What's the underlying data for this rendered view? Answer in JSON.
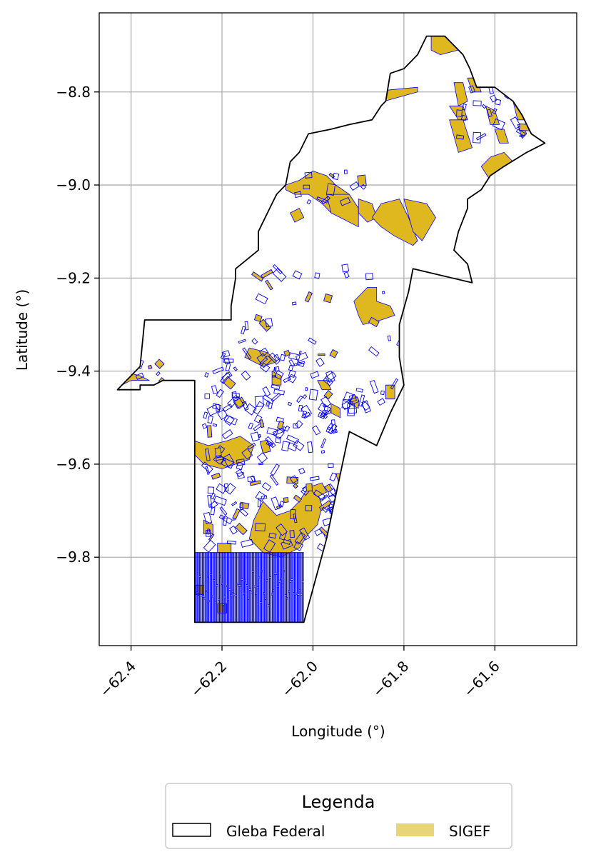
{
  "chart_data": {
    "type": "map",
    "xlabel": "Longitude (°)",
    "ylabel": "Latitude (°)",
    "xlim": [
      -62.47,
      -61.42
    ],
    "ylim": [
      -9.99,
      -8.63
    ],
    "x_ticks": [
      {
        "value": -62.4,
        "label": "−62.4"
      },
      {
        "value": -62.2,
        "label": "−62.2"
      },
      {
        "value": -62.0,
        "label": "−62.0"
      },
      {
        "value": -61.8,
        "label": "−61.8"
      },
      {
        "value": -61.6,
        "label": "−61.6"
      }
    ],
    "y_ticks": [
      {
        "value": -8.8,
        "label": "−8.8"
      },
      {
        "value": -9.0,
        "label": "−9.0"
      },
      {
        "value": -9.2,
        "label": "−9.2"
      },
      {
        "value": -9.4,
        "label": "−9.4"
      },
      {
        "value": -9.6,
        "label": "−9.6"
      },
      {
        "value": -9.8,
        "label": "−9.8"
      }
    ],
    "grid": true,
    "legend": {
      "title": "Legenda",
      "placement": "bottom-center",
      "entries": [
        {
          "label": "Gleba Federal",
          "style": "outline",
          "edge": "#000000",
          "fill": "#ffffff"
        },
        {
          "label": "SIGEF",
          "style": "filled",
          "fill": "#e8d57a"
        }
      ]
    },
    "colors": {
      "gleba_edge": "#000000",
      "sigef_fill": "#dfb81f",
      "sigef_edge": "#0000ff",
      "grid": "#b0b0b0"
    },
    "gleba_outline": [
      [
        -61.75,
        -8.68
      ],
      [
        -61.71,
        -8.68
      ],
      [
        -61.69,
        -8.7
      ],
      [
        -61.67,
        -8.72
      ],
      [
        -61.655,
        -8.75
      ],
      [
        -61.64,
        -8.79
      ],
      [
        -61.6,
        -8.79
      ],
      [
        -61.56,
        -8.82
      ],
      [
        -61.54,
        -8.85
      ],
      [
        -61.52,
        -8.89
      ],
      [
        -61.49,
        -8.91
      ],
      [
        -61.53,
        -8.93
      ],
      [
        -61.58,
        -8.96
      ],
      [
        -61.61,
        -8.98
      ],
      [
        -61.63,
        -9.01
      ],
      [
        -61.66,
        -9.03
      ],
      [
        -61.66,
        -9.05
      ],
      [
        -61.68,
        -9.1
      ],
      [
        -61.69,
        -9.14
      ],
      [
        -61.66,
        -9.17
      ],
      [
        -61.65,
        -9.21
      ],
      [
        -61.78,
        -9.18
      ],
      [
        -61.79,
        -9.23
      ],
      [
        -61.81,
        -9.3
      ],
      [
        -61.81,
        -9.37
      ],
      [
        -61.8,
        -9.43
      ],
      [
        -61.83,
        -9.49
      ],
      [
        -61.86,
        -9.56
      ],
      [
        -61.92,
        -9.53
      ],
      [
        -61.97,
        -9.76
      ],
      [
        -62.02,
        -9.94
      ],
      [
        -62.26,
        -9.94
      ],
      [
        -62.26,
        -9.79
      ],
      [
        -62.26,
        -9.6
      ],
      [
        -62.26,
        -9.42
      ],
      [
        -62.33,
        -9.42
      ],
      [
        -62.35,
        -9.43
      ],
      [
        -62.38,
        -9.43
      ],
      [
        -62.38,
        -9.44
      ],
      [
        -62.43,
        -9.44
      ],
      [
        -62.38,
        -9.39
      ],
      [
        -62.37,
        -9.29
      ],
      [
        -62.18,
        -9.29
      ],
      [
        -62.18,
        -9.26
      ],
      [
        -62.17,
        -9.2
      ],
      [
        -62.17,
        -9.18
      ],
      [
        -62.12,
        -9.14
      ],
      [
        -62.12,
        -9.1
      ],
      [
        -62.1,
        -9.06
      ],
      [
        -62.08,
        -9.02
      ],
      [
        -62.06,
        -9.0
      ],
      [
        -62.05,
        -8.95
      ],
      [
        -62.03,
        -8.93
      ],
      [
        -62.01,
        -8.89
      ],
      [
        -61.96,
        -8.88
      ],
      [
        -61.92,
        -8.87
      ],
      [
        -61.87,
        -8.86
      ],
      [
        -61.85,
        -8.83
      ],
      [
        -61.84,
        -8.82
      ],
      [
        -61.83,
        -8.76
      ],
      [
        -61.8,
        -8.75
      ],
      [
        -61.77,
        -8.72
      ],
      [
        -61.75,
        -8.68
      ]
    ],
    "sigef_polygons": [
      [
        [
          -61.74,
          -8.68
        ],
        [
          -61.71,
          -8.68
        ],
        [
          -61.69,
          -8.69
        ],
        [
          -61.68,
          -8.71
        ],
        [
          -61.72,
          -8.72
        ],
        [
          -61.74,
          -8.71
        ]
      ],
      [
        [
          -61.56,
          -8.82
        ],
        [
          -61.53,
          -8.82
        ],
        [
          -61.52,
          -8.86
        ],
        [
          -61.55,
          -8.86
        ]
      ],
      [
        [
          -61.88,
          -8.8
        ],
        [
          -61.77,
          -8.79
        ],
        [
          -61.77,
          -8.8
        ],
        [
          -61.88,
          -8.83
        ]
      ],
      [
        [
          -61.58,
          -8.93
        ],
        [
          -61.61,
          -8.94
        ],
        [
          -61.63,
          -8.96
        ],
        [
          -61.61,
          -8.99
        ],
        [
          -61.57,
          -8.98
        ],
        [
          -61.56,
          -8.95
        ]
      ],
      [
        [
          -61.66,
          -8.77
        ],
        [
          -61.64,
          -8.77
        ],
        [
          -61.63,
          -8.8
        ],
        [
          -61.65,
          -8.8
        ]
      ],
      [
        [
          -61.69,
          -8.78
        ],
        [
          -61.67,
          -8.78
        ],
        [
          -61.66,
          -8.82
        ],
        [
          -61.68,
          -8.83
        ]
      ],
      [
        [
          -61.7,
          -8.83
        ],
        [
          -61.67,
          -8.83
        ],
        [
          -61.66,
          -8.86
        ],
        [
          -61.68,
          -8.86
        ]
      ],
      [
        [
          -61.7,
          -8.86
        ],
        [
          -61.67,
          -8.86
        ],
        [
          -61.65,
          -8.92
        ],
        [
          -61.68,
          -8.93
        ]
      ],
      [
        [
          -61.62,
          -8.83
        ],
        [
          -61.6,
          -8.84
        ],
        [
          -61.59,
          -8.87
        ],
        [
          -61.61,
          -8.87
        ]
      ],
      [
        [
          -61.6,
          -8.88
        ],
        [
          -61.58,
          -8.88
        ],
        [
          -61.57,
          -8.91
        ],
        [
          -61.59,
          -8.91
        ]
      ],
      [
        [
          -61.55,
          -8.87
        ],
        [
          -61.54,
          -8.87
        ],
        [
          -61.53,
          -8.89
        ],
        [
          -61.54,
          -8.9
        ]
      ],
      [
        [
          -62.06,
          -9.0
        ],
        [
          -62.03,
          -8.99
        ],
        [
          -62.0,
          -8.97
        ],
        [
          -61.97,
          -8.98
        ],
        [
          -61.95,
          -9.0
        ],
        [
          -61.92,
          -9.02
        ],
        [
          -61.94,
          -9.06
        ],
        [
          -61.96,
          -9.06
        ],
        [
          -61.98,
          -9.04
        ],
        [
          -62.01,
          -9.02
        ],
        [
          -62.04,
          -9.02
        ],
        [
          -62.06,
          -9.01
        ]
      ],
      [
        [
          -61.97,
          -9.02
        ],
        [
          -61.92,
          -9.02
        ],
        [
          -61.9,
          -9.05
        ],
        [
          -61.9,
          -9.09
        ],
        [
          -61.94,
          -9.07
        ],
        [
          -61.96,
          -9.06
        ]
      ],
      [
        [
          -61.9,
          -9.03
        ],
        [
          -61.87,
          -9.04
        ],
        [
          -61.86,
          -9.07
        ],
        [
          -61.88,
          -9.08
        ],
        [
          -61.9,
          -9.06
        ]
      ],
      [
        [
          -61.85,
          -9.04
        ],
        [
          -61.81,
          -9.03
        ],
        [
          -61.79,
          -9.07
        ],
        [
          -61.77,
          -9.12
        ],
        [
          -61.78,
          -9.13
        ],
        [
          -61.82,
          -9.11
        ],
        [
          -61.85,
          -9.09
        ],
        [
          -61.87,
          -9.07
        ]
      ],
      [
        [
          -61.8,
          -9.03
        ],
        [
          -61.75,
          -9.04
        ],
        [
          -61.73,
          -9.07
        ],
        [
          -61.76,
          -9.12
        ],
        [
          -61.78,
          -9.1
        ]
      ],
      [
        [
          -62.05,
          -9.06
        ],
        [
          -62.03,
          -9.05
        ],
        [
          -62.02,
          -9.07
        ],
        [
          -62.04,
          -9.08
        ]
      ],
      [
        [
          -61.88,
          -9.22
        ],
        [
          -61.86,
          -9.22
        ],
        [
          -61.86,
          -9.25
        ],
        [
          -61.83,
          -9.26
        ],
        [
          -61.82,
          -9.28
        ],
        [
          -61.85,
          -9.29
        ],
        [
          -61.89,
          -9.3
        ],
        [
          -61.9,
          -9.28
        ],
        [
          -61.91,
          -9.25
        ],
        [
          -61.89,
          -9.23
        ]
      ],
      [
        [
          -62.14,
          -9.35
        ],
        [
          -62.1,
          -9.36
        ],
        [
          -62.08,
          -9.38
        ],
        [
          -62.11,
          -9.39
        ],
        [
          -62.13,
          -9.38
        ],
        [
          -62.15,
          -9.37
        ]
      ],
      [
        [
          -62.42,
          -9.4
        ],
        [
          -62.38,
          -9.41
        ],
        [
          -62.36,
          -9.42
        ],
        [
          -62.4,
          -9.42
        ],
        [
          -62.42,
          -9.43
        ]
      ],
      [
        [
          -62.26,
          -9.55
        ],
        [
          -62.23,
          -9.56
        ],
        [
          -62.19,
          -9.55
        ],
        [
          -62.16,
          -9.54
        ],
        [
          -62.13,
          -9.56
        ],
        [
          -62.14,
          -9.59
        ],
        [
          -62.17,
          -9.6
        ],
        [
          -62.2,
          -9.61
        ],
        [
          -62.24,
          -9.6
        ],
        [
          -62.26,
          -9.58
        ]
      ],
      [
        [
          -62.11,
          -9.68
        ],
        [
          -62.08,
          -9.71
        ],
        [
          -62.05,
          -9.7
        ],
        [
          -62.03,
          -9.68
        ],
        [
          -62.01,
          -9.65
        ],
        [
          -61.99,
          -9.66
        ],
        [
          -61.98,
          -9.69
        ],
        [
          -61.99,
          -9.73
        ],
        [
          -62.01,
          -9.75
        ],
        [
          -62.03,
          -9.78
        ],
        [
          -62.07,
          -9.8
        ],
        [
          -62.11,
          -9.79
        ],
        [
          -62.14,
          -9.76
        ],
        [
          -62.13,
          -9.72
        ],
        [
          -62.12,
          -9.7
        ]
      ],
      [
        [
          -62.01,
          -9.65
        ],
        [
          -61.98,
          -9.64
        ],
        [
          -61.97,
          -9.66
        ],
        [
          -61.99,
          -9.67
        ]
      ],
      [
        [
          -61.99,
          -9.42
        ],
        [
          -61.97,
          -9.42
        ],
        [
          -61.96,
          -9.44
        ],
        [
          -61.98,
          -9.44
        ]
      ],
      [
        [
          -61.91,
          -9.45
        ],
        [
          -61.9,
          -9.46
        ],
        [
          -61.9,
          -9.48
        ],
        [
          -61.92,
          -9.47
        ]
      ],
      [
        [
          -61.84,
          -9.43
        ],
        [
          -61.82,
          -9.43
        ],
        [
          -61.82,
          -9.46
        ],
        [
          -61.84,
          -9.46
        ]
      ],
      [
        [
          -61.96,
          -9.47
        ],
        [
          -61.94,
          -9.48
        ],
        [
          -61.94,
          -9.5
        ],
        [
          -61.96,
          -9.49
        ]
      ],
      [
        [
          -62.09,
          -9.4
        ],
        [
          -62.07,
          -9.41
        ],
        [
          -62.07,
          -9.43
        ],
        [
          -62.09,
          -9.43
        ]
      ],
      [
        [
          -62.24,
          -9.72
        ],
        [
          -62.22,
          -9.73
        ],
        [
          -62.22,
          -9.75
        ],
        [
          -62.24,
          -9.75
        ]
      ],
      [
        [
          -62.21,
          -9.77
        ],
        [
          -62.18,
          -9.77
        ],
        [
          -62.18,
          -9.79
        ],
        [
          -62.21,
          -9.79
        ]
      ],
      [
        [
          -62.26,
          -9.86
        ],
        [
          -62.24,
          -9.86
        ],
        [
          -62.24,
          -9.88
        ],
        [
          -62.26,
          -9.88
        ]
      ],
      [
        [
          -62.21,
          -9.9
        ],
        [
          -62.19,
          -9.9
        ],
        [
          -62.19,
          -9.92
        ],
        [
          -62.21,
          -9.92
        ]
      ],
      [
        [
          -61.95,
          -9.62
        ],
        [
          -61.94,
          -9.62
        ],
        [
          -61.93,
          -9.65
        ],
        [
          -61.94,
          -9.65
        ]
      ]
    ],
    "sigef_parcel_clusters": [
      {
        "lon_range": [
          -62.26,
          -62.02
        ],
        "lat_range": [
          -9.94,
          -9.79
        ],
        "count": 140,
        "shape": "strip"
      },
      {
        "lon_range": [
          -62.24,
          -61.95
        ],
        "lat_range": [
          -9.78,
          -9.36
        ],
        "count": 230,
        "shape": "parcel"
      },
      {
        "lon_range": [
          -62.17,
          -61.8
        ],
        "lat_range": [
          -9.36,
          -9.17
        ],
        "count": 28,
        "shape": "parcel"
      },
      {
        "lon_range": [
          -62.06,
          -61.88
        ],
        "lat_range": [
          -9.04,
          -8.97
        ],
        "count": 14,
        "shape": "parcel"
      },
      {
        "lon_range": [
          -61.68,
          -61.53
        ],
        "lat_range": [
          -8.92,
          -8.74
        ],
        "count": 22,
        "shape": "parcel"
      },
      {
        "lon_range": [
          -61.93,
          -61.82
        ],
        "lat_range": [
          -9.5,
          -9.42
        ],
        "count": 16,
        "shape": "parcel"
      },
      {
        "lon_range": [
          -62.39,
          -62.33
        ],
        "lat_range": [
          -9.43,
          -9.38
        ],
        "count": 6,
        "shape": "parcel"
      }
    ]
  }
}
